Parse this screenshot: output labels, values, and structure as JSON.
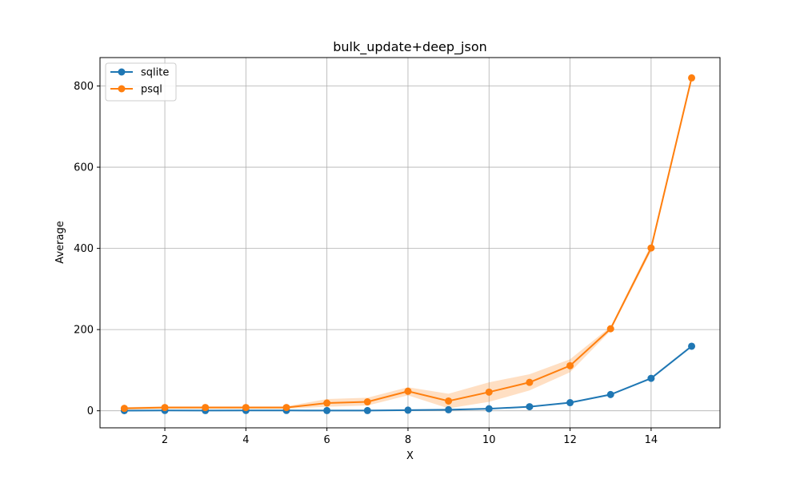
{
  "chart_data": {
    "type": "line",
    "title": "bulk_update+deep_json",
    "xlabel": "X",
    "ylabel": "Average",
    "xlim": [
      0.4,
      15.7
    ],
    "ylim": [
      -42,
      870
    ],
    "xticks": [
      2,
      4,
      6,
      8,
      10,
      12,
      14
    ],
    "yticks": [
      0,
      200,
      400,
      600,
      800
    ],
    "grid": true,
    "legend_position": "top-left",
    "x": [
      1,
      2,
      3,
      4,
      5,
      6,
      7,
      8,
      9,
      10,
      11,
      12,
      13,
      14,
      15
    ],
    "series": [
      {
        "name": "sqlite",
        "color": "#1f77b4",
        "values": [
          0.4,
          0.8,
          0.5,
          0.8,
          0.8,
          0.5,
          0.5,
          1.5,
          2.5,
          5,
          10,
          20,
          40,
          80,
          159
        ],
        "band_lower": [
          0.2,
          0.6,
          0.3,
          0.6,
          0.6,
          0.3,
          0.3,
          1.0,
          1.8,
          4,
          9,
          19,
          39,
          79,
          157
        ],
        "band_upper": [
          0.6,
          1.0,
          0.7,
          1.0,
          1.0,
          0.7,
          0.7,
          2.0,
          3.2,
          6,
          11,
          21,
          41,
          81,
          161
        ]
      },
      {
        "name": "psql",
        "color": "#ff7f0e",
        "values": [
          6,
          8,
          8,
          8,
          8,
          19,
          22,
          48,
          24,
          46,
          70,
          111,
          202,
          401,
          820
        ],
        "band_lower": [
          3,
          5,
          5,
          5,
          5,
          10,
          13,
          38,
          6,
          22,
          50,
          95,
          197,
          393,
          812
        ],
        "band_upper": [
          9,
          11,
          11,
          11,
          11,
          29,
          32,
          58,
          42,
          70,
          90,
          127,
          207,
          409,
          828
        ]
      }
    ]
  }
}
